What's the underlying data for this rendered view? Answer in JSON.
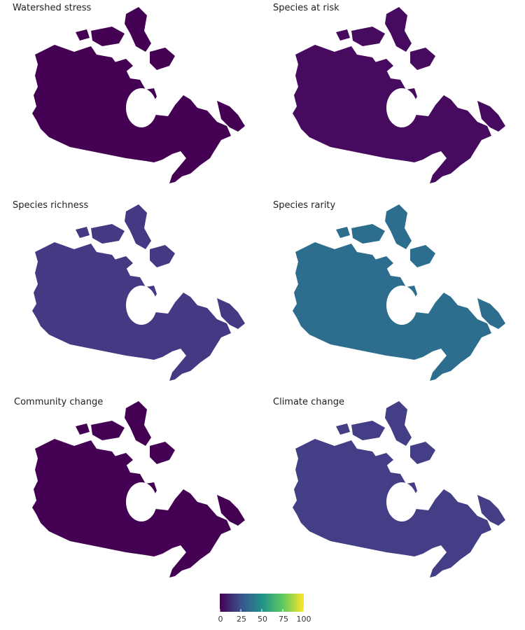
{
  "panels": [
    {
      "title": "Watershed stress",
      "pattern": "southwest-southeast",
      "fill": "#440154"
    },
    {
      "title": "Species at risk",
      "pattern": "south-low",
      "fill": "#46085c"
    },
    {
      "title": "Species richness",
      "pattern": "south-gradient",
      "fill": "#443a83"
    },
    {
      "title": "Species rarity",
      "pattern": "broad-mixed",
      "fill": "#2d6e8e"
    },
    {
      "title": "Community change",
      "pattern": "southwest-hot",
      "fill": "#440154"
    },
    {
      "title": "Climate change",
      "pattern": "mixed-low",
      "fill": "#433e85"
    }
  ],
  "legend": {
    "ticks": [
      "0",
      "25",
      "50",
      "75",
      "100"
    ],
    "colors": [
      "#440154",
      "#3b528b",
      "#21918c",
      "#5ec962",
      "#fde725"
    ]
  }
}
